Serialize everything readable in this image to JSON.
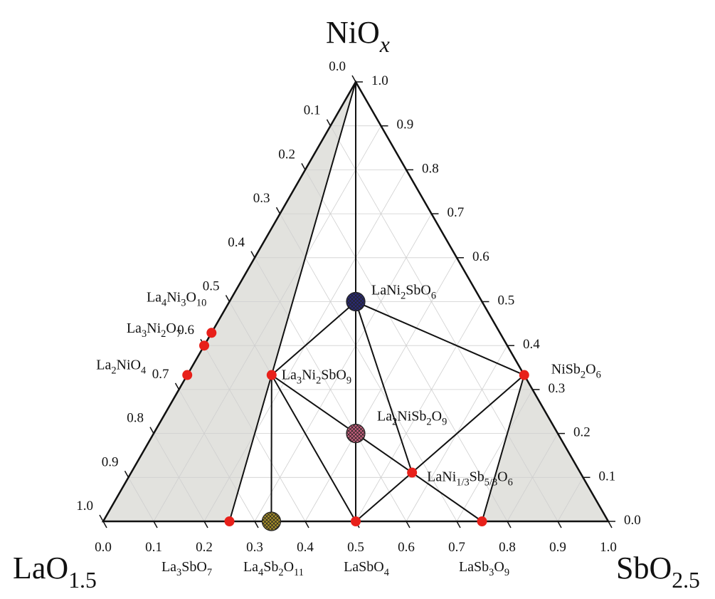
{
  "chart_data": {
    "type": "ternary",
    "grid": true,
    "line_color": "#111111",
    "grid_color": "#cfcfcf",
    "shade_color": "#e2e2de",
    "vertices": {
      "top": {
        "label": [
          "NiO",
          "x"
        ]
      },
      "left": {
        "label": [
          "LaO",
          "1.5"
        ]
      },
      "right": {
        "label": [
          "SbO",
          "2.5"
        ]
      }
    },
    "bottom_ticks": [
      {
        "value": 0,
        "label": "0.0"
      },
      0.1,
      0.2,
      0.3,
      0.4,
      0.5,
      0.6,
      0.7,
      0.8,
      0.9,
      {
        "value": 1,
        "label": "1.0"
      }
    ],
    "right_ticks": [
      {
        "value": 0,
        "label": "0.0"
      },
      0.1,
      0.2,
      0.3,
      0.4,
      0.5,
      0.6,
      0.7,
      0.8,
      0.9,
      {
        "value": 1,
        "label": "1.0"
      }
    ],
    "left_ticks": [
      {
        "value": 0,
        "label": "0.0"
      },
      0.1,
      0.2,
      0.3,
      0.4,
      0.5,
      0.6,
      0.7,
      0.8,
      0.9,
      {
        "value": 1,
        "label": "1.0"
      }
    ],
    "phases": [
      {
        "label": [
          "La",
          "4",
          "Ni",
          "3",
          "O",
          "10"
        ],
        "ni": 0.429,
        "sb": 0,
        "color": "#e8201a"
      },
      {
        "label": [
          "La",
          "3",
          "Ni",
          "2",
          "O",
          "7"
        ],
        "ni": 0.4,
        "sb": 0,
        "color": "#e8201a"
      },
      {
        "label": [
          "La",
          "2",
          "NiO",
          "4"
        ],
        "ni": 0.333,
        "sb": 0,
        "color": "#e8201a"
      },
      {
        "label": [
          "La",
          "3",
          "Ni",
          "2",
          "SbO",
          "9"
        ],
        "ni": 0.333,
        "sb": 0.167,
        "color": "#e8201a"
      },
      {
        "label": [
          "LaNi",
          "2",
          "SbO",
          "6"
        ],
        "ni": 0.5,
        "sb": 0.25,
        "color": "#2a2a78",
        "label_color": "#2a2a78",
        "marker": "large"
      },
      {
        "label": [
          "La",
          "2",
          "NiSb",
          "2",
          "O",
          "9"
        ],
        "ni": 0.2,
        "sb": 0.4,
        "color": "#c9607e",
        "label_color": "#9a2a7e",
        "marker": "large"
      },
      {
        "label": [
          "LaNi",
          "1/3",
          "Sb",
          "5/3",
          "O",
          "6"
        ],
        "ni": 0.111,
        "sb": 0.556,
        "color": "#e8201a"
      },
      {
        "label": [
          "NiSb",
          "2",
          "O",
          "6"
        ],
        "ni": 0.333,
        "sb": 0.667,
        "color": "#e8201a"
      },
      {
        "label": [
          "La",
          "3",
          "SbO",
          "7"
        ],
        "ni": 0,
        "sb": 0.25,
        "color": "#e8201a"
      },
      {
        "label": [
          "La",
          "4",
          "Sb",
          "2",
          "O",
          "11"
        ],
        "ni": 0,
        "sb": 0.333,
        "color": "#a89028",
        "label_color": "#1a8a3a",
        "marker": "large"
      },
      {
        "label": [
          "LaSbO",
          "4"
        ],
        "ni": 0,
        "sb": 0.5,
        "color": "#e8201a"
      },
      {
        "label": [
          "LaSb",
          "3",
          "O",
          "9"
        ],
        "ni": 0,
        "sb": 0.75,
        "color": "#e8201a"
      }
    ],
    "tie_lines": [
      [
        [
          1,
          0
        ],
        [
          0.5,
          0.25
        ]
      ],
      [
        [
          1,
          0
        ],
        [
          0.333,
          0.167
        ]
      ],
      [
        [
          0.5,
          0.25
        ],
        [
          0.333,
          0.167
        ]
      ],
      [
        [
          0.5,
          0.25
        ],
        [
          0.333,
          0.667
        ]
      ],
      [
        [
          0.5,
          0.25
        ],
        [
          0.2,
          0.4
        ]
      ],
      [
        [
          0.5,
          0.25
        ],
        [
          0.111,
          0.556
        ]
      ],
      [
        [
          0.333,
          0.167
        ],
        [
          0.2,
          0.4
        ]
      ],
      [
        [
          0.333,
          0.167
        ],
        [
          0,
          0.5
        ]
      ],
      [
        [
          0.333,
          0.167
        ],
        [
          0,
          0.333
        ]
      ],
      [
        [
          0.333,
          0.167
        ],
        [
          0,
          0.25
        ]
      ],
      [
        [
          0.2,
          0.4
        ],
        [
          0,
          0.5
        ]
      ],
      [
        [
          0.2,
          0.4
        ],
        [
          0.111,
          0.556
        ]
      ],
      [
        [
          0.111,
          0.556
        ],
        [
          0,
          0.5
        ]
      ],
      [
        [
          0.111,
          0.556
        ],
        [
          0.333,
          0.667
        ]
      ],
      [
        [
          0.111,
          0.556
        ],
        [
          0,
          0.75
        ]
      ],
      [
        [
          0.333,
          0.667
        ],
        [
          0,
          0.75
        ]
      ]
    ],
    "shaded_regions": [
      [
        [
          1,
          0
        ],
        [
          0.333,
          0.167
        ],
        [
          0,
          0.25
        ],
        [
          0,
          0
        ]
      ],
      [
        [
          0.333,
          0.667
        ],
        [
          0,
          1
        ],
        [
          0,
          0.75
        ]
      ]
    ]
  }
}
